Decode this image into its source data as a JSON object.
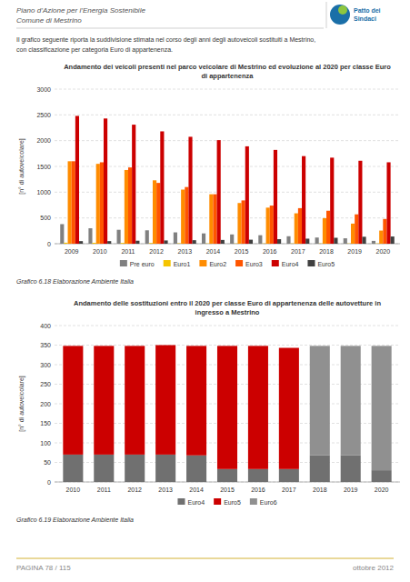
{
  "header": [
    "Piano d’Azione per l’Energia Sostenibile",
    "Comune di Mestrino"
  ],
  "logo_text": [
    "Patto dei",
    "Sindaci"
  ],
  "intro_text": [
    "Il grafico seguente riporta la suddivisione stimata nel corso degli anni degli autoveicoli sostituiti a Mestrino,",
    "con classificazione per categoria Euro di appartenenza."
  ],
  "chart_data": [
    {
      "type": "bar",
      "title": "Andamento dei veicoli presenti nel parco veicolare di Mestrino ed evoluzione al 2020 per classe Euro\ndi appartenenza",
      "ylabel": "[n° di autoveicolare]",
      "categories": [
        "2009",
        "2010",
        "2011",
        "2012",
        "2013",
        "2014",
        "2015",
        "2016",
        "2017",
        "2018",
        "2019",
        "2020"
      ],
      "series": [
        {
          "name": "Pre euro",
          "color": "#808080",
          "values": [
            380,
            300,
            270,
            260,
            220,
            200,
            180,
            165,
            145,
            120,
            105,
            55
          ]
        },
        {
          "name": "Euro1",
          "color": "#f5c400",
          "values": [
            20,
            18,
            15,
            12,
            8,
            5,
            5,
            5,
            5,
            5,
            5,
            5
          ]
        },
        {
          "name": "Euro2",
          "color": "#ff8c00",
          "values": [
            1600,
            1550,
            1430,
            1230,
            1050,
            960,
            790,
            700,
            590,
            495,
            390,
            255
          ]
        },
        {
          "name": "Euro3",
          "color": "#ff5500",
          "values": [
            1600,
            1580,
            1480,
            1180,
            1100,
            960,
            840,
            740,
            690,
            640,
            570,
            480
          ]
        },
        {
          "name": "Euro4",
          "color": "#cc0000",
          "values": [
            2480,
            2430,
            2310,
            2180,
            2075,
            2010,
            1890,
            1820,
            1700,
            1670,
            1610,
            1580
          ]
        },
        {
          "name": "Euro5",
          "color": "#404040",
          "values": [
            50,
            50,
            58,
            63,
            68,
            73,
            78,
            88,
            98,
            115,
            135,
            140
          ]
        }
      ],
      "ylim": [
        0,
        3000
      ],
      "yticks": [
        0,
        500,
        1000,
        1500,
        2000,
        2500,
        3000
      ],
      "grid": true,
      "legend": "bottom",
      "caption": "Grafico 6.18 Elaborazione Ambiente Italia"
    },
    {
      "type": "bar",
      "title": "Andamento delle sostituzioni entro il 2020 per classe Euro di appartenenza delle autovetture in\ningresso a Mestrino",
      "ylabel": "[n° di autoveicolare]",
      "categories": [
        "2010",
        "2011",
        "2012",
        "2013",
        "2014",
        "2015",
        "2016",
        "2017",
        "2018",
        "2019",
        "2020"
      ],
      "series": [
        {
          "name": "Euro4",
          "color": "#707070",
          "values": [
            70,
            70,
            70,
            70,
            68,
            33,
            33,
            33,
            68,
            68,
            30
          ]
        },
        {
          "name": "Euro5",
          "color": "#cc0000",
          "values": [
            278,
            278,
            278,
            280,
            280,
            315,
            315,
            310,
            0,
            0,
            0
          ]
        },
        {
          "name": "Euro6",
          "color": "#909090",
          "values": [
            0,
            0,
            0,
            0,
            0,
            0,
            0,
            0,
            280,
            280,
            318
          ]
        }
      ],
      "stacked": true,
      "ylim": [
        0,
        400
      ],
      "yticks": [
        0,
        50,
        100,
        150,
        200,
        250,
        300,
        350,
        400
      ],
      "grid": true,
      "legend": "bottom",
      "caption": "Grafico 6.19 Elaborazione Ambiente Italia"
    }
  ],
  "footer_left": "PAGINA 78 / 115",
  "footer_right": "ottobre 2012"
}
